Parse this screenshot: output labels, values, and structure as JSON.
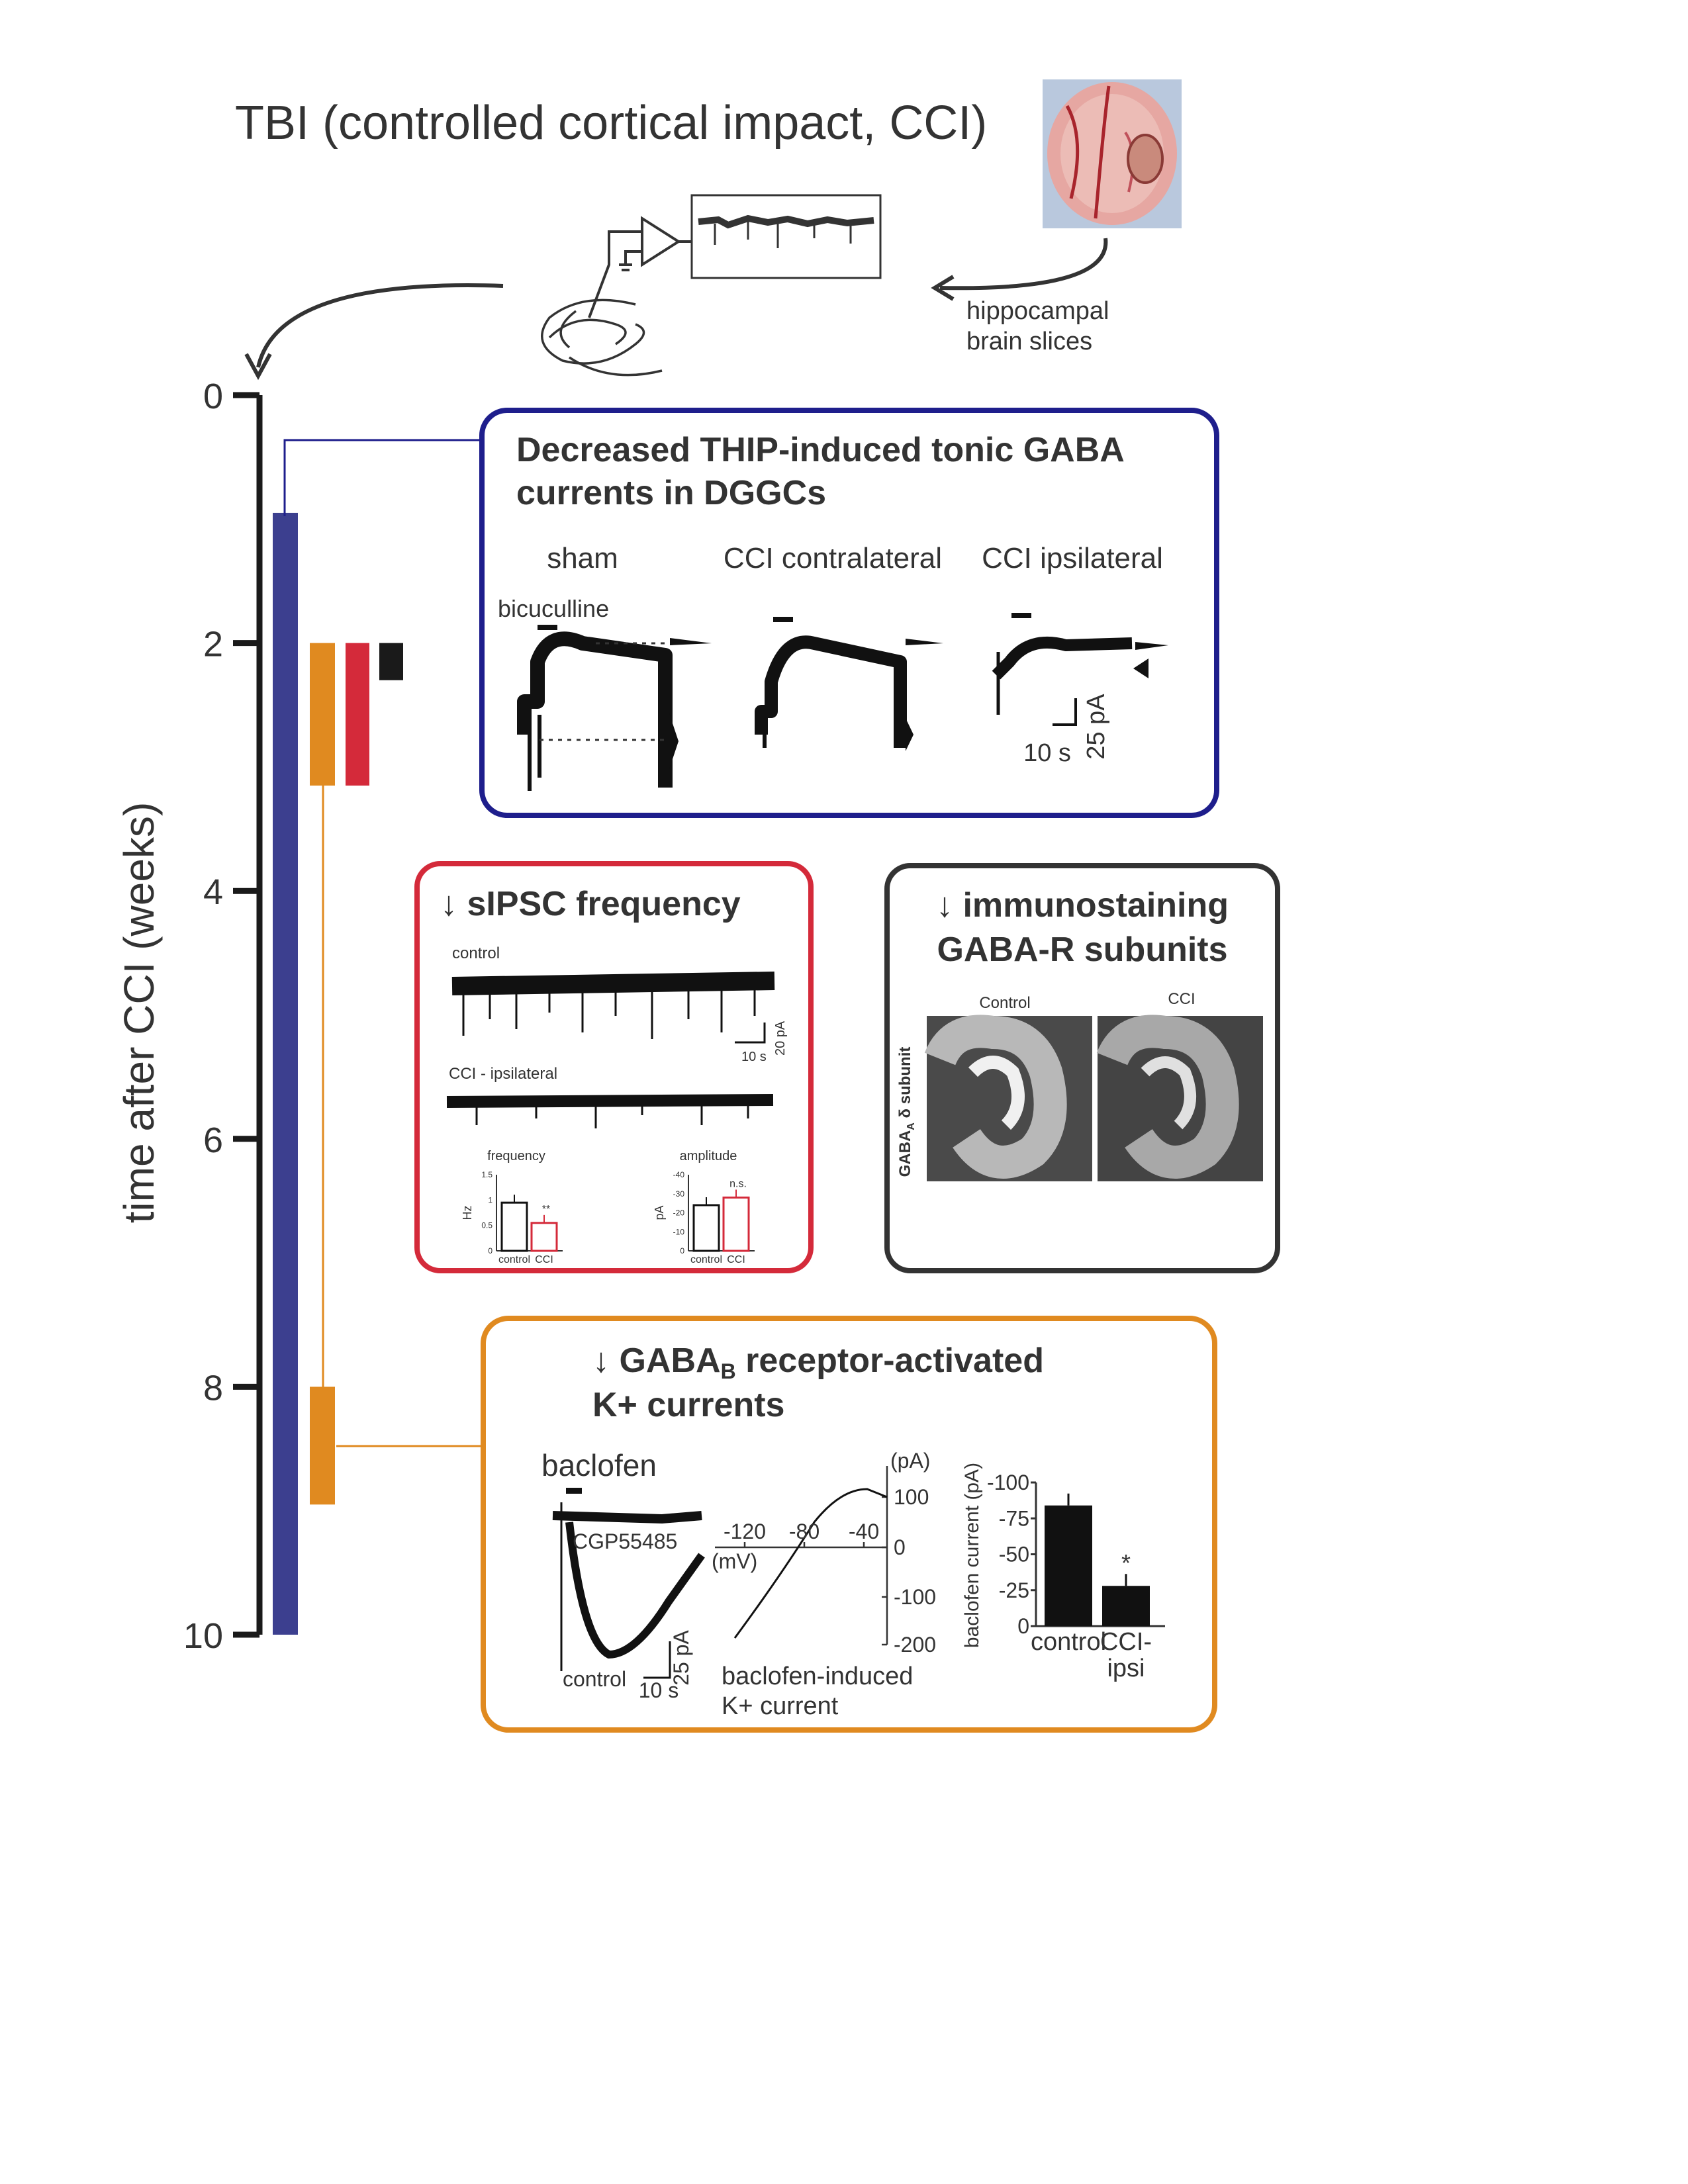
{
  "title": "TBI (controlled cortical impact, CCI)",
  "slice_label": [
    "hippocampal",
    "brain slices"
  ],
  "timeline": {
    "axis_label": "time after CCI (weeks)",
    "ticks": [
      "0",
      "2",
      "4",
      "6",
      "8",
      "10"
    ],
    "tick_values": [
      0,
      2,
      4,
      6,
      8,
      10
    ],
    "bars": [
      {
        "name": "blue",
        "start": 0.95,
        "end": 10,
        "color": "#3c3f8f"
      },
      {
        "name": "orange-early",
        "start": 2,
        "end": 3.15,
        "color": "#e08a20"
      },
      {
        "name": "red",
        "start": 2,
        "end": 3.15,
        "color": "#d42a3a"
      },
      {
        "name": "black",
        "start": 2,
        "end": 2.3,
        "color": "#1a1a1a"
      },
      {
        "name": "orange-late",
        "start": 8,
        "end": 8.95,
        "color": "#e08a20"
      }
    ]
  },
  "panel_thip": {
    "title": [
      "Decreased THIP-induced tonic GABA",
      "currents in DGGCs"
    ],
    "conditions": [
      "sham",
      "CCI contralateral",
      "CCI ipsilateral"
    ],
    "drug": "bicuculline",
    "scale_time": "10 s",
    "scale_current": "25 pA",
    "border_color": "#1e1e8c"
  },
  "panel_sipsc": {
    "title": "↓ sIPSC frequency",
    "trace_labels": [
      "control",
      "CCI - ipsilateral"
    ],
    "scale_time": "10 s",
    "scale_current": "20 pA",
    "border_color": "#d42a3a",
    "charts": [
      {
        "title": "frequency",
        "ylabel": "Hz",
        "yticks": [
          "1.5",
          "1",
          "0.5",
          "0"
        ],
        "categories": [
          "control",
          "CCI"
        ],
        "values": [
          0.95,
          0.55
        ],
        "ylim": [
          0,
          1.5
        ],
        "significance": "**"
      },
      {
        "title": "amplitude",
        "ylabel": "pA",
        "yticks": [
          "-40",
          "-30",
          "-20",
          "-10",
          "0"
        ],
        "categories": [
          "control",
          "CCI"
        ],
        "values": [
          -24,
          -28
        ],
        "ylim": [
          -40,
          0
        ],
        "significance": "n.s."
      }
    ]
  },
  "panel_immuno": {
    "title": [
      "↓ immunostaining",
      "GABA-R subunits"
    ],
    "image_labels": [
      "Control",
      "CCI"
    ],
    "side_label": "GABA",
    "side_label_sub": "A",
    "side_label_rest": " δ subunit",
    "border_color": "#333333"
  },
  "panel_gabab": {
    "title_arrow": "↓ GABA",
    "title_sub": "B",
    "title_rest": " receptor-activated",
    "title_line2": "K+ currents",
    "drug": "baclofen",
    "trace_labels": [
      "CGP55485",
      "control"
    ],
    "scale_current": "25 pA",
    "scale_time": "10 s",
    "iv_xticks": [
      "-120",
      "-80",
      "-40"
    ],
    "iv_yticks": [
      "100",
      "0",
      "-100",
      "-200"
    ],
    "iv_xunit": "(mV)",
    "iv_yunit": "(pA)",
    "iv_caption": [
      "baclofen-induced",
      "K+ current"
    ],
    "bar_ylabel": "baclofen current (pA)",
    "bar_yticks": [
      "-100",
      "-75",
      "-50",
      "-25",
      "0"
    ],
    "border_color": "#e08a20",
    "chart_data": {
      "type": "bar",
      "categories": [
        "control",
        "CCI-ipsi"
      ],
      "category_lines": [
        [
          "control"
        ],
        [
          "CCI-",
          "ipsi"
        ]
      ],
      "values": [
        -84,
        -28
      ],
      "ylim": [
        -100,
        0
      ],
      "ylabel": "baclofen current (pA)",
      "significance": [
        "",
        "*"
      ]
    }
  }
}
